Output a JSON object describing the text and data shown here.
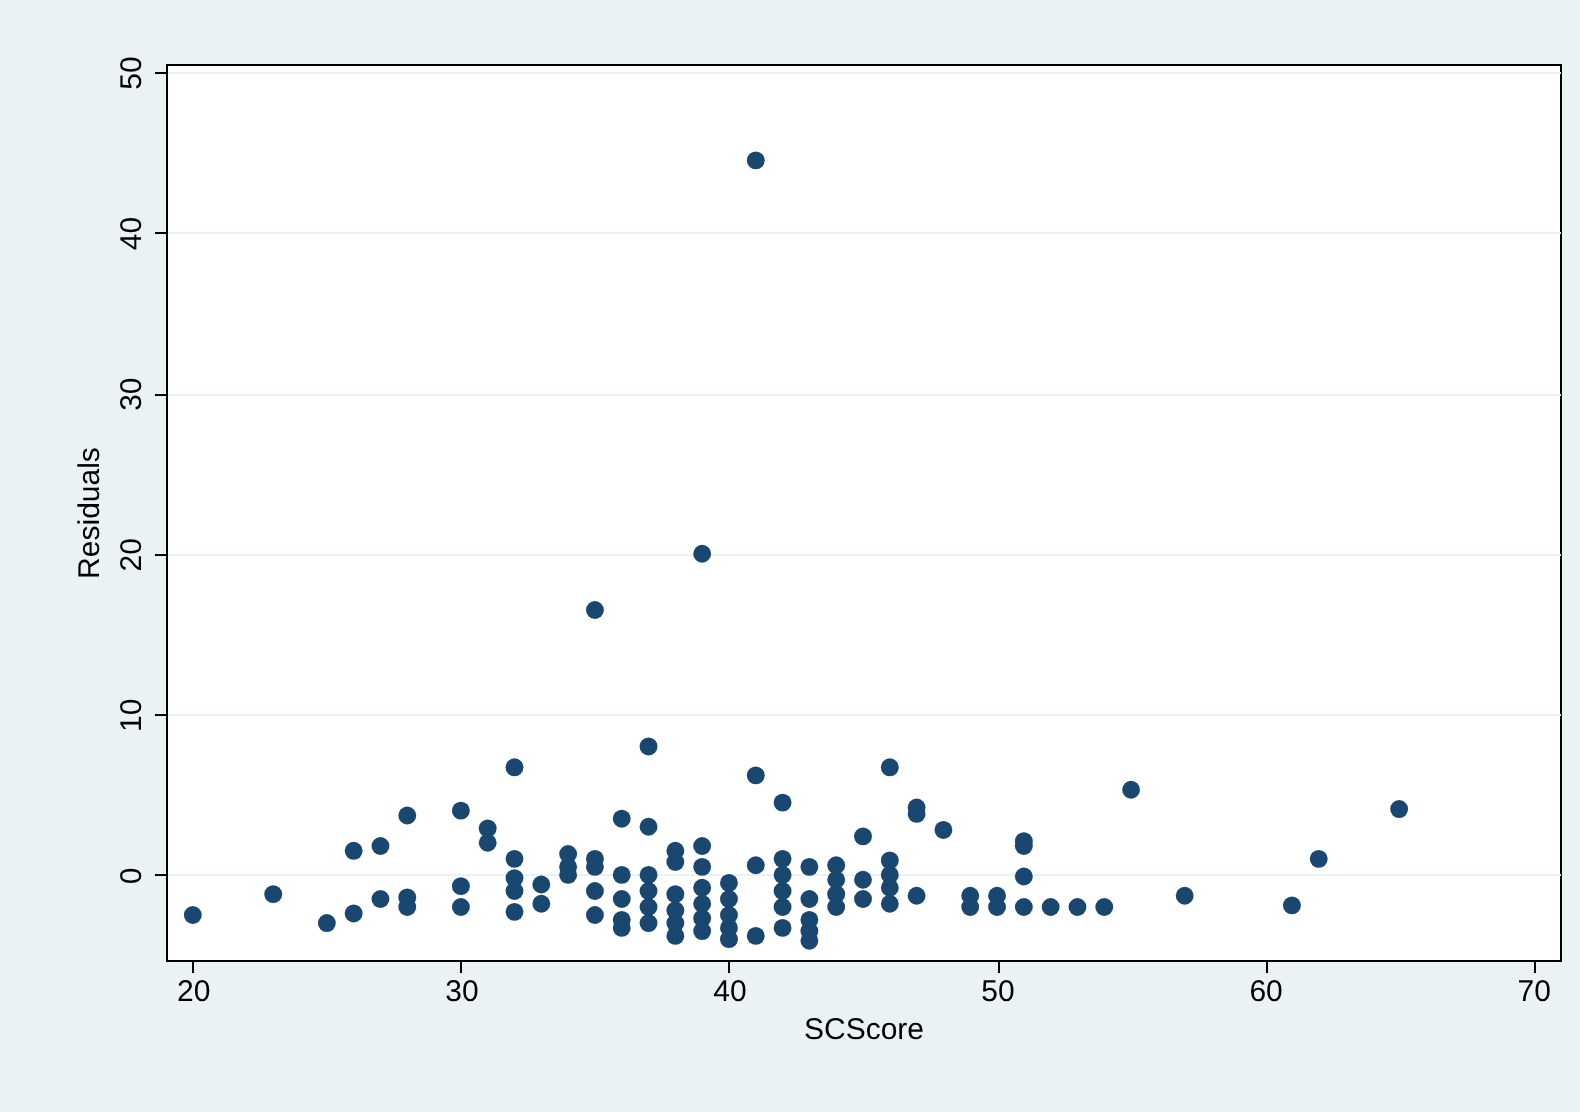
{
  "chart_data": {
    "type": "scatter",
    "xlabel": "SCScore",
    "ylabel": "Residuals",
    "xlim": [
      19,
      71
    ],
    "ylim": [
      -5.3,
      50.5
    ],
    "xticks": [
      20,
      30,
      40,
      50,
      60,
      70
    ],
    "yticks": [
      0,
      10,
      20,
      30,
      40,
      50
    ],
    "grid": "y",
    "marker": "circle",
    "series": [
      {
        "color": "#1a476f",
        "x": [
          20,
          23,
          25,
          26,
          26,
          27,
          27,
          28,
          28,
          28,
          30,
          30,
          30,
          31,
          31,
          32,
          32,
          32,
          32,
          32,
          33,
          33,
          34,
          34,
          34,
          35,
          35,
          35,
          35,
          35,
          36,
          36,
          36,
          36,
          36,
          37,
          37,
          37,
          37,
          37,
          37,
          38,
          38,
          38,
          38,
          38,
          38,
          39,
          39,
          39,
          39,
          39,
          39,
          39,
          40,
          40,
          40,
          40,
          40,
          41,
          41,
          41,
          41,
          42,
          42,
          42,
          42,
          42,
          42,
          43,
          43,
          43,
          43,
          43,
          44,
          44,
          44,
          44,
          45,
          45,
          45,
          46,
          46,
          46,
          46,
          46,
          47,
          47,
          47,
          48,
          49,
          49,
          50,
          50,
          51,
          51,
          51,
          51,
          52,
          53,
          54,
          55,
          57,
          61,
          62,
          65
        ],
        "values": [
          -2.5,
          -1.2,
          -3,
          1.5,
          -2.4,
          1.8,
          -1.5,
          3.7,
          -1.4,
          -2,
          4,
          -0.7,
          -2,
          2.9,
          2,
          6.7,
          1,
          -0.2,
          -1,
          -2.3,
          -0.6,
          -1.8,
          1.3,
          0.5,
          0,
          16.5,
          1,
          0.5,
          -1,
          -2.5,
          3.5,
          0,
          -1.5,
          -2.8,
          -3.3,
          8,
          3,
          0,
          -1,
          -2,
          -3,
          1.5,
          0.8,
          -1.2,
          -2.2,
          -3,
          -3.8,
          20,
          1.8,
          0.5,
          -0.8,
          -1.8,
          -2.7,
          -3.5,
          -0.5,
          -1.5,
          -2.5,
          -3.3,
          -4,
          44.5,
          6.2,
          0.6,
          -3.8,
          4.5,
          1,
          0,
          -1,
          -2,
          -3.3,
          0.5,
          -1.5,
          -2.8,
          -3.5,
          -4.1,
          0.6,
          -0.3,
          -1.2,
          -2,
          2.4,
          -0.3,
          -1.5,
          6.7,
          0.9,
          0,
          -0.8,
          -1.8,
          4.2,
          3.8,
          -1.3,
          2.8,
          -1.3,
          -2,
          -1.3,
          -2,
          2.1,
          1.8,
          -0.1,
          -2,
          -2,
          -2,
          -2,
          5.3,
          -1.3,
          -1.9,
          1,
          4.1
        ]
      }
    ]
  }
}
